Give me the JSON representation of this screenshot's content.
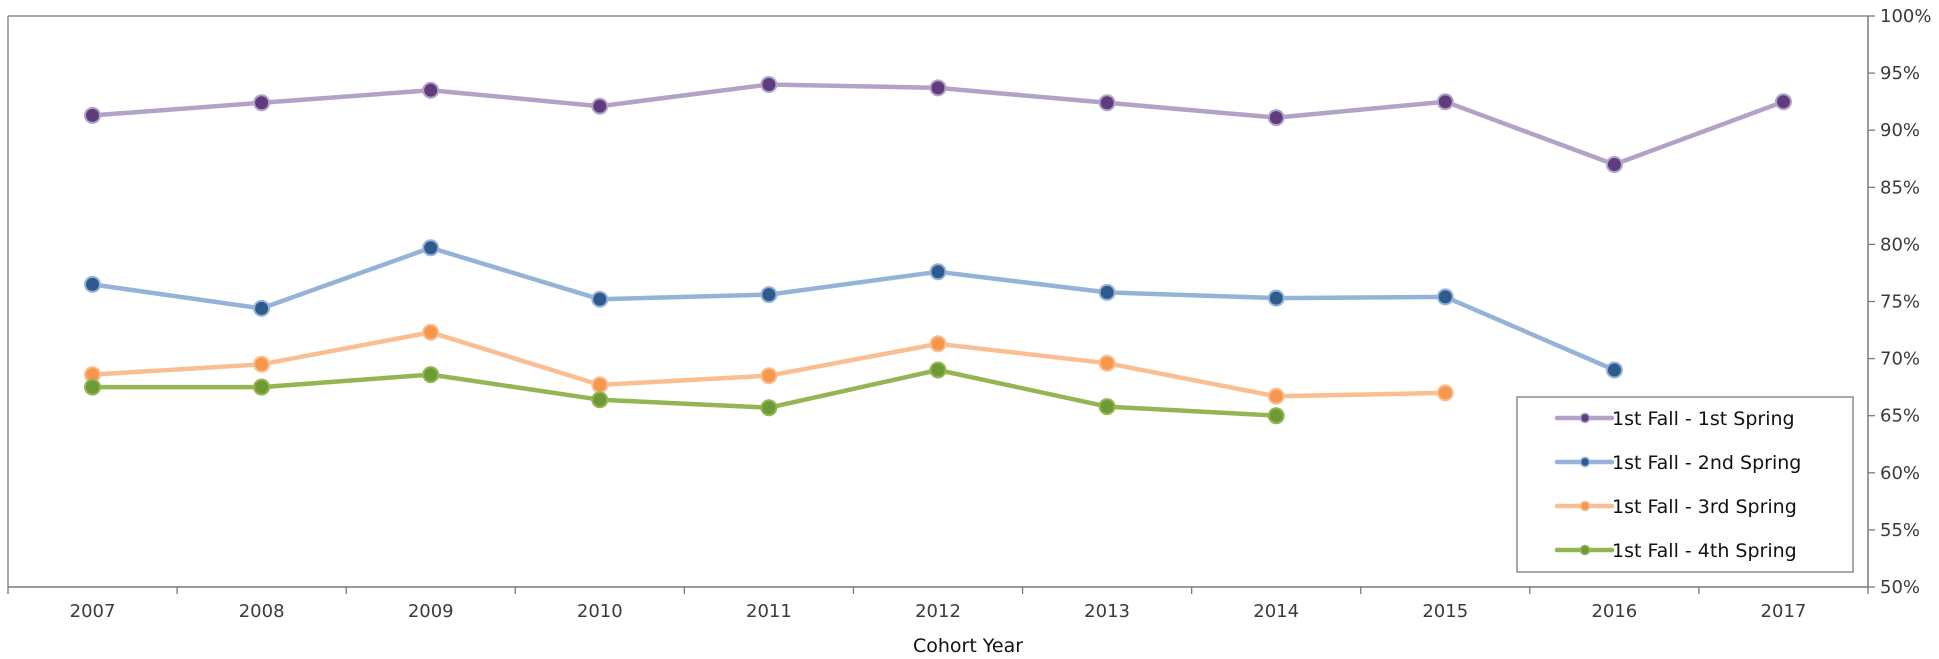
{
  "chart_data": {
    "type": "line",
    "title": "",
    "xlabel": "Cohort Year",
    "ylabel": "",
    "categories": [
      "2007",
      "2008",
      "2009",
      "2010",
      "2011",
      "2012",
      "2013",
      "2014",
      "2015",
      "2016",
      "2017"
    ],
    "y_ticks": [
      "50%",
      "55%",
      "60%",
      "65%",
      "70%",
      "75%",
      "80%",
      "85%",
      "90%",
      "95%",
      "100%"
    ],
    "ylim": [
      50,
      100
    ],
    "y_axis_position": "right",
    "grid": false,
    "legend_position": "bottom-right",
    "series": [
      {
        "name": "1st Fall - 1st Spring",
        "line_color": "#b3a2c8",
        "marker_color": "#5e3c7d",
        "values": [
          91.3,
          92.4,
          93.5,
          92.1,
          94.0,
          93.7,
          92.4,
          91.1,
          92.5,
          87.0,
          92.5
        ]
      },
      {
        "name": "1st Fall - 2nd Spring",
        "line_color": "#95b3d9",
        "marker_color": "#2e5a8e",
        "values": [
          76.5,
          74.4,
          79.7,
          75.2,
          75.6,
          77.6,
          75.8,
          75.3,
          75.4,
          69.0,
          null
        ]
      },
      {
        "name": "1st Fall - 3rd Spring",
        "line_color": "#f9bf92",
        "marker_color": "#f7974b",
        "values": [
          68.6,
          69.5,
          72.3,
          67.7,
          68.5,
          71.3,
          69.6,
          66.7,
          67.0,
          null,
          null
        ]
      },
      {
        "name": "1st Fall - 4th Spring",
        "line_color": "#93b653",
        "marker_color": "#6e9a35",
        "values": [
          67.5,
          67.5,
          68.6,
          66.4,
          65.7,
          69.0,
          65.8,
          65.0,
          null,
          null,
          null
        ]
      }
    ]
  }
}
